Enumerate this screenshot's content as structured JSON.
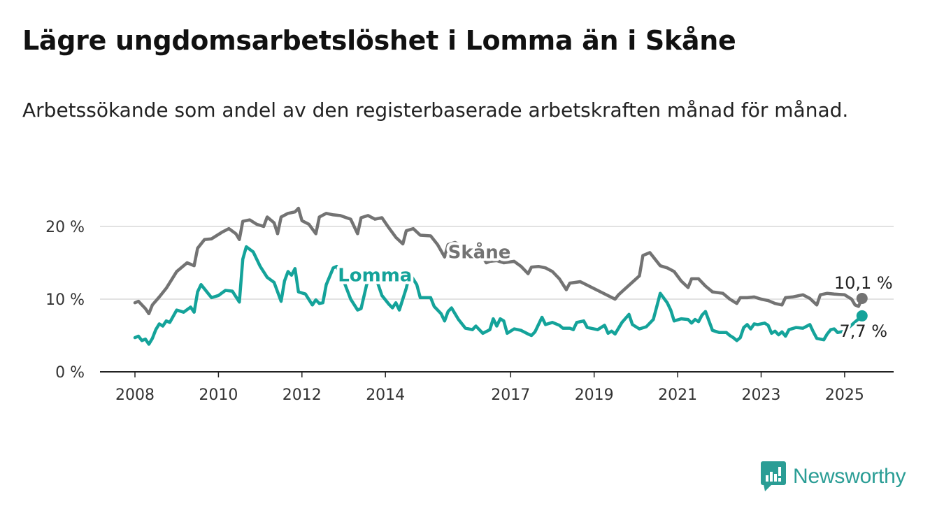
{
  "title": "Lägre ungdomsarbetslöshet i Lomma än i Skåne",
  "subtitle": "Arbetssökande som andel av den registerbaserade arbetskraften månad för månad.",
  "brand": {
    "name": "Newsworthy",
    "icon": "newsworthy-logo-icon",
    "color": "#2a9d95"
  },
  "chart_data": {
    "type": "line",
    "x_ticks": [
      "2008",
      "2010",
      "2012",
      "2014",
      "2017",
      "2019",
      "2021",
      "2023",
      "2025"
    ],
    "y_ticks": [
      {
        "value": 0,
        "label": "0 %"
      },
      {
        "value": 10,
        "label": "10 %"
      },
      {
        "value": 20,
        "label": "20 %"
      }
    ],
    "ylim": [
      0,
      23
    ],
    "xlim": [
      "2008-01",
      "2025-07"
    ],
    "grid": "horizontal",
    "legend": "inline labels",
    "series": [
      {
        "name": "Skåne",
        "color": "#737373",
        "label_at": "2018-12",
        "end_label": "10,1 %",
        "points": [
          [
            "2008-01",
            9.5
          ],
          [
            "2008-02",
            9.7
          ],
          [
            "2008-04",
            8.7
          ],
          [
            "2008-05",
            8.0
          ],
          [
            "2008-06",
            9.2
          ],
          [
            "2008-08",
            10.3
          ],
          [
            "2008-10",
            11.5
          ],
          [
            "2009-01",
            13.8
          ],
          [
            "2009-04",
            15.0
          ],
          [
            "2009-06",
            14.6
          ],
          [
            "2009-07",
            17.0
          ],
          [
            "2009-09",
            18.2
          ],
          [
            "2009-11",
            18.3
          ],
          [
            "2010-02",
            19.2
          ],
          [
            "2010-04",
            19.7
          ],
          [
            "2010-06",
            19.0
          ],
          [
            "2010-07",
            18.2
          ],
          [
            "2010-08",
            20.7
          ],
          [
            "2010-10",
            20.9
          ],
          [
            "2010-12",
            20.3
          ],
          [
            "2011-02",
            20.0
          ],
          [
            "2011-03",
            21.3
          ],
          [
            "2011-05",
            20.5
          ],
          [
            "2011-06",
            19.0
          ],
          [
            "2011-07",
            21.3
          ],
          [
            "2011-09",
            21.8
          ],
          [
            "2011-11",
            22.0
          ],
          [
            "2011-12",
            22.5
          ],
          [
            "2012-01",
            20.8
          ],
          [
            "2012-03",
            20.3
          ],
          [
            "2012-05",
            19.0
          ],
          [
            "2012-06",
            21.3
          ],
          [
            "2012-08",
            21.8
          ],
          [
            "2012-10",
            21.6
          ],
          [
            "2012-12",
            21.5
          ],
          [
            "2013-03",
            21.0
          ],
          [
            "2013-05",
            19.0
          ],
          [
            "2013-06",
            21.2
          ],
          [
            "2013-08",
            21.5
          ],
          [
            "2013-10",
            21.0
          ],
          [
            "2013-12",
            21.2
          ],
          [
            "2014-02",
            19.8
          ],
          [
            "2014-04",
            18.5
          ],
          [
            "2014-06",
            17.6
          ],
          [
            "2014-07",
            19.4
          ],
          [
            "2014-09",
            19.7
          ],
          [
            "2014-11",
            18.8
          ],
          [
            "2015-02",
            18.7
          ],
          [
            "2015-04",
            17.5
          ],
          [
            "2015-06",
            15.8
          ],
          [
            "2015-07",
            17.5
          ],
          [
            "2015-09",
            17.8
          ],
          [
            "2015-11",
            17.3
          ],
          [
            "2016-02",
            16.9
          ],
          [
            "2016-04",
            16.5
          ],
          [
            "2016-06",
            15.0
          ],
          [
            "2016-07",
            15.2
          ],
          [
            "2016-09",
            15.3
          ],
          [
            "2016-11",
            15.0
          ],
          [
            "2017-02",
            15.2
          ],
          [
            "2017-04",
            14.5
          ],
          [
            "2017-06",
            13.5
          ],
          [
            "2017-07",
            14.4
          ],
          [
            "2017-09",
            14.5
          ],
          [
            "2017-11",
            14.3
          ],
          [
            "2018-01",
            13.8
          ],
          [
            "2018-03",
            12.8
          ],
          [
            "2018-05",
            11.3
          ],
          [
            "2018-06",
            12.2
          ],
          [
            "2018-09",
            12.4
          ],
          [
            "2019-07",
            10.0
          ],
          [
            "2019-08",
            10.6
          ],
          [
            "2020-02",
            13.2
          ],
          [
            "2020-03",
            16.0
          ],
          [
            "2020-05",
            16.4
          ],
          [
            "2020-06",
            15.8
          ],
          [
            "2020-08",
            14.6
          ],
          [
            "2020-10",
            14.3
          ],
          [
            "2020-12",
            13.8
          ],
          [
            "2021-02",
            12.5
          ],
          [
            "2021-04",
            11.6
          ],
          [
            "2021-05",
            12.8
          ],
          [
            "2021-07",
            12.8
          ],
          [
            "2021-09",
            11.8
          ],
          [
            "2021-11",
            11.0
          ],
          [
            "2022-02",
            10.8
          ],
          [
            "2022-04",
            10.0
          ],
          [
            "2022-06",
            9.4
          ],
          [
            "2022-07",
            10.2
          ],
          [
            "2022-09",
            10.2
          ],
          [
            "2022-11",
            10.3
          ],
          [
            "2023-01",
            10.0
          ],
          [
            "2023-03",
            9.8
          ],
          [
            "2023-05",
            9.4
          ],
          [
            "2023-07",
            9.2
          ],
          [
            "2023-08",
            10.2
          ],
          [
            "2023-10",
            10.3
          ],
          [
            "2024-01",
            10.6
          ],
          [
            "2024-03",
            10.1
          ],
          [
            "2024-05",
            9.2
          ],
          [
            "2024-06",
            10.6
          ],
          [
            "2024-08",
            10.8
          ],
          [
            "2024-10",
            10.7
          ],
          [
            "2025-01",
            10.6
          ],
          [
            "2025-03",
            10.0
          ],
          [
            "2025-04",
            9.2
          ],
          [
            "2025-05",
            9.0
          ],
          [
            "2025-06",
            10.1
          ]
        ]
      },
      {
        "name": "Lomma",
        "color": "#14a39a",
        "label_at": "2013-10",
        "end_label": "7,7 %",
        "points": [
          [
            "2008-01",
            4.7
          ],
          [
            "2008-02",
            4.9
          ],
          [
            "2008-03",
            4.3
          ],
          [
            "2008-04",
            4.5
          ],
          [
            "2008-05",
            3.8
          ],
          [
            "2008-06",
            4.6
          ],
          [
            "2008-07",
            5.8
          ],
          [
            "2008-08",
            6.6
          ],
          [
            "2008-09",
            6.3
          ],
          [
            "2008-10",
            7.0
          ],
          [
            "2008-11",
            6.8
          ],
          [
            "2009-01",
            8.5
          ],
          [
            "2009-03",
            8.2
          ],
          [
            "2009-05",
            8.9
          ],
          [
            "2009-06",
            8.2
          ],
          [
            "2009-07",
            11.0
          ],
          [
            "2009-08",
            12.0
          ],
          [
            "2009-10",
            10.8
          ],
          [
            "2009-11",
            10.2
          ],
          [
            "2010-01",
            10.5
          ],
          [
            "2010-03",
            11.2
          ],
          [
            "2010-05",
            11.1
          ],
          [
            "2010-07",
            9.6
          ],
          [
            "2010-08",
            15.5
          ],
          [
            "2010-09",
            17.2
          ],
          [
            "2010-11",
            16.5
          ],
          [
            "2011-01",
            14.5
          ],
          [
            "2011-03",
            13.0
          ],
          [
            "2011-05",
            12.3
          ],
          [
            "2011-06",
            11.0
          ],
          [
            "2011-07",
            9.7
          ],
          [
            "2011-08",
            12.5
          ],
          [
            "2011-09",
            13.8
          ],
          [
            "2011-10",
            13.3
          ],
          [
            "2011-11",
            14.2
          ],
          [
            "2011-12",
            11.0
          ],
          [
            "2012-02",
            10.7
          ],
          [
            "2012-04",
            9.2
          ],
          [
            "2012-05",
            9.9
          ],
          [
            "2012-06",
            9.4
          ],
          [
            "2012-07",
            9.5
          ],
          [
            "2012-08",
            12.0
          ],
          [
            "2012-10",
            14.3
          ],
          [
            "2012-11",
            14.5
          ],
          [
            "2013-01",
            12.5
          ],
          [
            "2013-03",
            10.0
          ],
          [
            "2013-05",
            8.5
          ],
          [
            "2013-06",
            8.7
          ],
          [
            "2013-08",
            12.8
          ],
          [
            "2013-10",
            13.3
          ],
          [
            "2013-12",
            10.5
          ],
          [
            "2014-02",
            9.3
          ],
          [
            "2014-03",
            8.8
          ],
          [
            "2014-04",
            9.5
          ],
          [
            "2014-05",
            8.5
          ],
          [
            "2014-07",
            11.5
          ],
          [
            "2014-08",
            13.5
          ],
          [
            "2014-10",
            12.0
          ],
          [
            "2014-11",
            10.2
          ],
          [
            "2015-02",
            10.2
          ],
          [
            "2015-03",
            9.0
          ],
          [
            "2015-05",
            8.0
          ],
          [
            "2015-06",
            7.0
          ],
          [
            "2015-07",
            8.3
          ],
          [
            "2015-08",
            8.8
          ],
          [
            "2015-10",
            7.2
          ],
          [
            "2015-12",
            6.0
          ],
          [
            "2016-02",
            5.8
          ],
          [
            "2016-03",
            6.3
          ],
          [
            "2016-05",
            5.3
          ],
          [
            "2016-07",
            5.8
          ],
          [
            "2016-08",
            7.3
          ],
          [
            "2016-09",
            6.3
          ],
          [
            "2016-10",
            7.3
          ],
          [
            "2016-11",
            7.0
          ],
          [
            "2016-12",
            5.3
          ],
          [
            "2017-02",
            5.9
          ],
          [
            "2017-04",
            5.7
          ],
          [
            "2017-06",
            5.2
          ],
          [
            "2017-07",
            5.0
          ],
          [
            "2017-08",
            5.5
          ],
          [
            "2017-09",
            6.5
          ],
          [
            "2017-10",
            7.5
          ],
          [
            "2017-11",
            6.5
          ],
          [
            "2018-01",
            6.8
          ],
          [
            "2018-03",
            6.4
          ],
          [
            "2018-04",
            6.0
          ],
          [
            "2018-06",
            6.0
          ],
          [
            "2018-07",
            5.8
          ],
          [
            "2018-08",
            6.8
          ],
          [
            "2018-10",
            7.0
          ],
          [
            "2018-11",
            6.1
          ],
          [
            "2019-02",
            5.8
          ],
          [
            "2019-04",
            6.4
          ],
          [
            "2019-05",
            5.3
          ],
          [
            "2019-06",
            5.6
          ],
          [
            "2019-07",
            5.2
          ],
          [
            "2019-09",
            6.8
          ],
          [
            "2019-11",
            7.9
          ],
          [
            "2019-12",
            6.5
          ],
          [
            "2020-02",
            5.9
          ],
          [
            "2020-04",
            6.2
          ],
          [
            "2020-06",
            7.2
          ],
          [
            "2020-07",
            9.0
          ],
          [
            "2020-08",
            10.8
          ],
          [
            "2020-10",
            9.5
          ],
          [
            "2020-11",
            8.5
          ],
          [
            "2020-12",
            7.0
          ],
          [
            "2021-02",
            7.3
          ],
          [
            "2021-04",
            7.2
          ],
          [
            "2021-05",
            6.7
          ],
          [
            "2021-06",
            7.2
          ],
          [
            "2021-07",
            6.9
          ],
          [
            "2021-08",
            7.8
          ],
          [
            "2021-09",
            8.3
          ],
          [
            "2021-10",
            7.0
          ],
          [
            "2021-11",
            5.7
          ],
          [
            "2022-01",
            5.4
          ],
          [
            "2022-03",
            5.4
          ],
          [
            "2022-04",
            5.0
          ],
          [
            "2022-05",
            4.7
          ],
          [
            "2022-06",
            4.3
          ],
          [
            "2022-07",
            4.7
          ],
          [
            "2022-08",
            6.1
          ],
          [
            "2022-09",
            6.5
          ],
          [
            "2022-10",
            5.9
          ],
          [
            "2022-11",
            6.6
          ],
          [
            "2022-12",
            6.5
          ],
          [
            "2023-02",
            6.7
          ],
          [
            "2023-03",
            6.4
          ],
          [
            "2023-04",
            5.3
          ],
          [
            "2023-05",
            5.6
          ],
          [
            "2023-06",
            5.1
          ],
          [
            "2023-07",
            5.5
          ],
          [
            "2023-08",
            4.9
          ],
          [
            "2023-09",
            5.8
          ],
          [
            "2023-11",
            6.1
          ],
          [
            "2024-01",
            6.0
          ],
          [
            "2024-03",
            6.5
          ],
          [
            "2024-04",
            5.5
          ],
          [
            "2024-05",
            4.6
          ],
          [
            "2024-07",
            4.4
          ],
          [
            "2024-08",
            5.2
          ],
          [
            "2024-09",
            5.8
          ],
          [
            "2024-10",
            5.9
          ],
          [
            "2024-11",
            5.4
          ],
          [
            "2025-01",
            5.6
          ],
          [
            "2025-06",
            7.7
          ]
        ]
      }
    ]
  }
}
